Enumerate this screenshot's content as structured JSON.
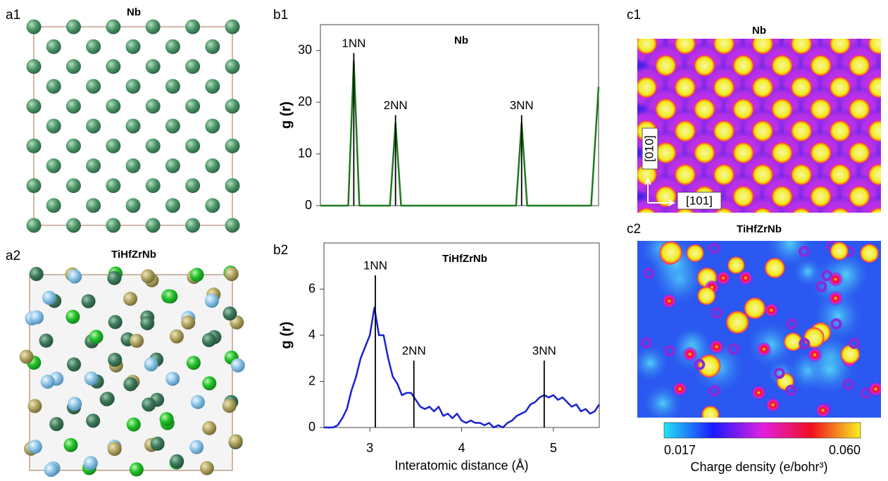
{
  "panels": {
    "a1": {
      "label": "a1",
      "title": "Nb"
    },
    "a2": {
      "label": "a2",
      "title": "TiHfZrNb"
    },
    "c1": {
      "label": "c1",
      "title": "Nb",
      "directions": [
        "[010]",
        "[101]"
      ]
    },
    "c2": {
      "label": "c2",
      "title": "TiHfZrNb"
    }
  },
  "colorbar": {
    "label": "Charge density (e/bohr³)",
    "ticks": [
      0.017,
      {
        "value": 0.06,
        "label": "0.060"
      }
    ],
    "colors": [
      "#22e4f2",
      "#1a1aff",
      "#e020e0",
      "#f01020",
      "#f8f020"
    ]
  },
  "chart_data": [
    {
      "type": "line",
      "panel_label": "b1",
      "title": "Nb",
      "ylabel": "g (r)",
      "x": [
        2.5,
        2.8,
        2.86,
        2.92,
        3.25,
        3.31,
        3.37,
        4.61,
        4.67,
        4.73,
        5.42,
        5.5
      ],
      "series": [
        {
          "color": "#1e7a1e",
          "values": [
            0,
            0,
            28,
            0,
            0,
            16,
            0,
            0,
            16,
            0,
            0,
            23
          ]
        }
      ],
      "annotations": [
        {
          "text": "1NN",
          "x": 2.86,
          "y": 29.5
        },
        {
          "text": "2NN",
          "x": 3.31,
          "y": 17.5
        },
        {
          "text": "3NN",
          "x": 4.67,
          "y": 17.5
        }
      ],
      "xlim": [
        2.5,
        5.5
      ],
      "ylim": [
        0,
        35
      ],
      "yticks": [
        0,
        10,
        20,
        30
      ]
    },
    {
      "type": "line",
      "panel_label": "b2",
      "title": "TiHfZrNb",
      "ylabel": "g (r)",
      "xlabel": "Interatomic distance (Å)",
      "x": [
        2.5,
        2.6,
        2.65,
        2.7,
        2.75,
        2.8,
        2.85,
        2.9,
        2.95,
        3.0,
        3.05,
        3.1,
        3.15,
        3.2,
        3.25,
        3.3,
        3.35,
        3.4,
        3.45,
        3.5,
        3.55,
        3.6,
        3.65,
        3.7,
        3.75,
        3.8,
        3.85,
        3.9,
        3.95,
        4.0,
        4.05,
        4.1,
        4.15,
        4.2,
        4.25,
        4.3,
        4.35,
        4.4,
        4.45,
        4.5,
        4.55,
        4.6,
        4.65,
        4.7,
        4.75,
        4.8,
        4.85,
        4.9,
        4.95,
        5.0,
        5.05,
        5.1,
        5.15,
        5.2,
        5.25,
        5.3,
        5.35,
        5.4,
        5.45,
        5.5
      ],
      "series": [
        {
          "color": "#1a22cc",
          "values": [
            0,
            0,
            0.1,
            0.4,
            0.8,
            1.6,
            2.2,
            3.0,
            3.5,
            4.0,
            5.2,
            4.0,
            4.0,
            3.0,
            2.2,
            1.9,
            1.4,
            1.5,
            1.5,
            1.2,
            0.9,
            0.8,
            0.9,
            0.7,
            0.9,
            0.5,
            0.6,
            0.4,
            0.6,
            0.3,
            0.2,
            0.3,
            0.2,
            0.2,
            0.1,
            0.2,
            0.0,
            0.1,
            0.0,
            0.2,
            0.3,
            0.5,
            0.6,
            0.7,
            1.0,
            1.1,
            1.3,
            1.4,
            1.3,
            1.4,
            1.2,
            1.3,
            1.1,
            0.9,
            1.0,
            0.7,
            0.8,
            0.6,
            0.7,
            1.0
          ]
        }
      ],
      "annotations": [
        {
          "text": "1NN",
          "x": 3.06,
          "y": 6.6
        },
        {
          "text": "2NN",
          "x": 3.48,
          "y": 2.9
        },
        {
          "text": "3NN",
          "x": 4.9,
          "y": 2.9
        }
      ],
      "xlim": [
        2.5,
        5.5
      ],
      "ylim": [
        0,
        8
      ],
      "xticks": [
        3,
        4,
        5
      ],
      "yticks": [
        0,
        2,
        4,
        6
      ]
    }
  ]
}
